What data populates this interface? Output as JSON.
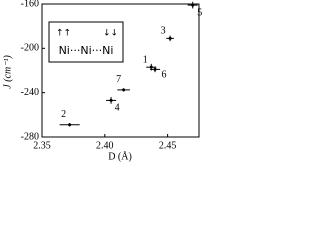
{
  "chart_data": {
    "type": "scatter",
    "xlabel": "D (Å)",
    "ylabel": "J (cm⁻¹)",
    "x": [
      2.437,
      2.372,
      2.452,
      2.405,
      2.47,
      2.44,
      2.415
    ],
    "y": [
      -217,
      -269,
      -191,
      -247,
      -161,
      -219,
      -237.5
    ],
    "x_err": [
      0.004,
      0.008,
      0.003,
      0.004,
      0.004,
      0.004,
      0.005
    ],
    "y_err": [
      3,
      1.5,
      2.5,
      3,
      3,
      2.5,
      1.5
    ],
    "point_labels": [
      "1",
      "2",
      "3",
      "4",
      "5",
      "6",
      "7"
    ],
    "color": "#000000",
    "xlim": [
      2.35,
      2.475
    ],
    "ylim": [
      -280,
      -160
    ],
    "xticks": [
      2.35,
      {
        "value": 2.4,
        "label": "2.40"
      },
      2.45
    ],
    "yticks": [
      -160,
      -200,
      -240,
      -280
    ],
    "annotations": [
      "↑↑",
      "↓↓",
      "Ni···Ni···Ni"
    ]
  }
}
